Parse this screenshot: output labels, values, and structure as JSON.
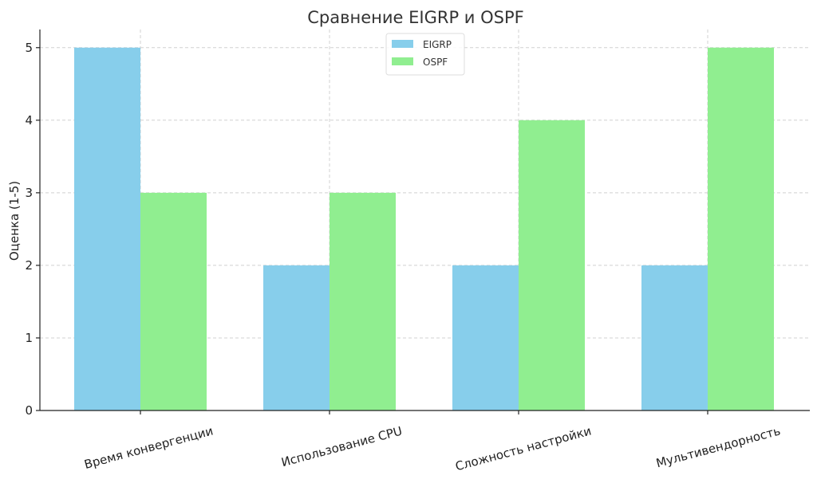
{
  "chart_data": {
    "type": "bar",
    "title": "Сравнение EIGRP и OSPF",
    "xlabel": "",
    "ylabel": "Оценка (1-5)",
    "ylim": [
      0,
      5.25
    ],
    "yticks": [
      "0",
      "1",
      "2",
      "3",
      "4",
      "5"
    ],
    "grid": true,
    "legend_position": "top-center",
    "categories": [
      "Время конвергенции",
      "Использование CPU",
      "Сложность настройки",
      "Мультивендорность"
    ],
    "series": [
      {
        "name": "EIGRP",
        "color": "#87ceeb",
        "values": [
          5,
          2,
          2,
          2
        ]
      },
      {
        "name": "OSPF",
        "color": "#90ee90",
        "values": [
          3,
          3,
          4,
          5
        ]
      }
    ]
  }
}
